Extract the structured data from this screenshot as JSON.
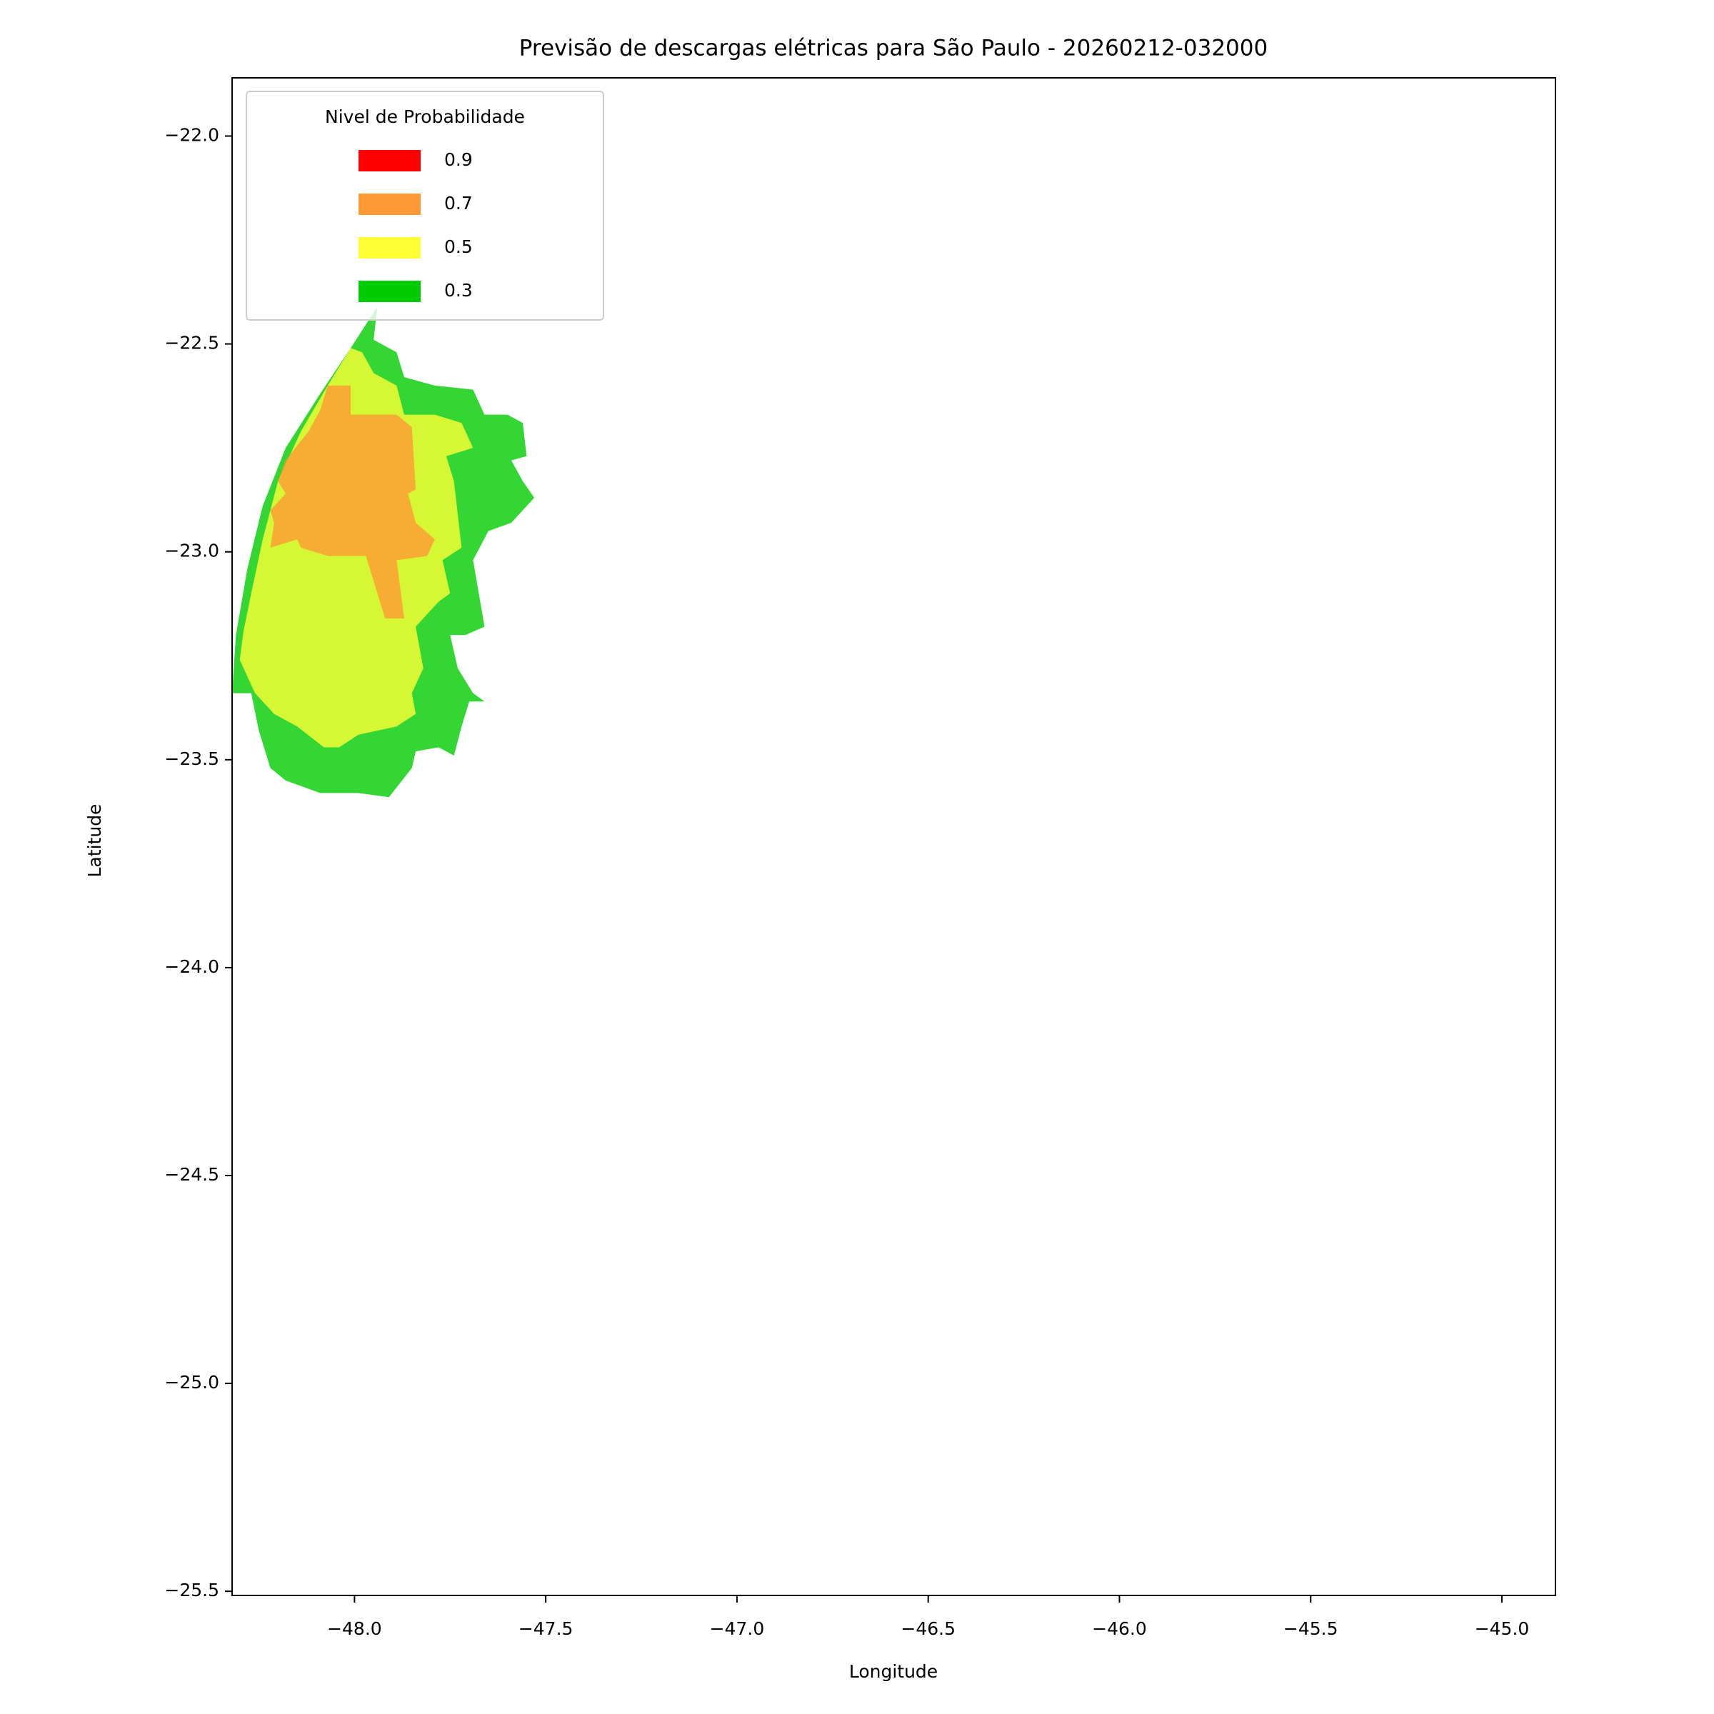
{
  "chart_data": {
    "type": "contourf",
    "title": "Previsão de descargas elétricas para São Paulo - 20260212-032000",
    "x_label": "Longitude",
    "y_label": "Latitude",
    "xlim": [
      -48.32,
      -44.86
    ],
    "ylim": [
      -25.51,
      -21.86
    ],
    "xticks": [
      {
        "value": -48.0,
        "label": "−48.0"
      },
      {
        "value": -47.5,
        "label": "−47.5"
      },
      {
        "value": -47.0,
        "label": "−47.0"
      },
      {
        "value": -46.5,
        "label": "−46.5"
      },
      {
        "value": -46.0,
        "label": "−46.0"
      },
      {
        "value": -45.5,
        "label": "−45.5"
      },
      {
        "value": -45.0,
        "label": "−45.0"
      }
    ],
    "yticks": [
      {
        "value": -22.0,
        "label": "−22.0"
      },
      {
        "value": -22.5,
        "label": "−22.5"
      },
      {
        "value": -23.0,
        "label": "−23.0"
      },
      {
        "value": -23.5,
        "label": "−23.5"
      },
      {
        "value": -24.0,
        "label": "−24.0"
      },
      {
        "value": -24.5,
        "label": "−24.5"
      },
      {
        "value": -25.0,
        "label": "−25.0"
      },
      {
        "value": -25.5,
        "label": "−25.5"
      }
    ],
    "alpha": 0.8,
    "legend": {
      "title": "Nivel de Probabilidade",
      "loc": "upper left"
    },
    "series": [
      {
        "name": "0.9",
        "color": "#ff0000",
        "polygons": []
      },
      {
        "name": "0.7",
        "color": "#ff9933",
        "polygons": [
          {
            "lon": [
              -48.07,
              -48.01,
              -48.01,
              -47.89,
              -47.85,
              -47.84,
              -47.86,
              -47.84,
              -47.79,
              -47.81,
              -47.89,
              -47.87,
              -47.92,
              -47.97,
              -48.07,
              -48.14,
              -48.15,
              -48.22,
              -48.21,
              -48.22,
              -48.18,
              -48.2,
              -48.18,
              -48.12,
              -48.09
            ],
            "lat": [
              -22.6,
              -22.6,
              -22.67,
              -22.67,
              -22.7,
              -22.85,
              -22.86,
              -22.93,
              -22.97,
              -23.01,
              -23.02,
              -23.16,
              -23.16,
              -23.01,
              -23.01,
              -22.99,
              -22.97,
              -22.99,
              -22.93,
              -22.9,
              -22.86,
              -22.83,
              -22.78,
              -22.71,
              -22.66
            ]
          }
        ]
      },
      {
        "name": "0.5",
        "color": "#ffff33",
        "polygons": [
          {
            "lon": [
              -48.01,
              -48.07,
              -48.14,
              -48.2,
              -48.24,
              -48.27,
              -48.29,
              -48.3,
              -48.26,
              -48.21,
              -48.15,
              -48.08,
              -48.04,
              -47.99,
              -47.94,
              -47.89,
              -47.84,
              -47.85,
              -47.82,
              -47.84,
              -47.78,
              -47.75,
              -47.77,
              -47.72,
              -47.74,
              -47.76,
              -47.69,
              -47.72,
              -47.79,
              -47.87,
              -47.89,
              -47.95,
              -47.98
            ],
            "lat": [
              -22.51,
              -22.6,
              -22.71,
              -22.83,
              -22.97,
              -23.1,
              -23.19,
              -23.26,
              -23.34,
              -23.39,
              -23.42,
              -23.47,
              -23.47,
              -23.44,
              -23.43,
              -23.42,
              -23.39,
              -23.34,
              -23.28,
              -23.18,
              -23.12,
              -23.1,
              -23.02,
              -22.99,
              -22.83,
              -22.77,
              -22.75,
              -22.69,
              -22.67,
              -22.67,
              -22.6,
              -22.57,
              -22.52
            ]
          }
        ]
      },
      {
        "name": "0.3",
        "color": "#00cc00",
        "polygons": [
          {
            "lon": [
              -47.94,
              -48.01,
              -48.09,
              -48.18,
              -48.24,
              -48.28,
              -48.31,
              -48.32,
              -48.27,
              -48.25,
              -48.22,
              -48.18,
              -48.09,
              -47.99,
              -47.91,
              -47.85,
              -47.84,
              -47.78,
              -47.74,
              -47.72,
              -47.7,
              -47.66,
              -47.69,
              -47.73,
              -47.75,
              -47.71,
              -47.66,
              -47.69,
              -47.65,
              -47.59,
              -47.53,
              -47.56,
              -47.59,
              -47.55,
              -47.56,
              -47.6,
              -47.66,
              -47.69,
              -47.79,
              -47.87,
              -47.89,
              -47.95
            ],
            "lat": [
              -22.41,
              -22.51,
              -22.62,
              -22.75,
              -22.89,
              -23.04,
              -23.2,
              -23.34,
              -23.34,
              -23.43,
              -23.52,
              -23.55,
              -23.58,
              -23.58,
              -23.59,
              -23.52,
              -23.48,
              -23.47,
              -23.49,
              -23.42,
              -23.36,
              -23.36,
              -23.34,
              -23.28,
              -23.2,
              -23.2,
              -23.18,
              -23.02,
              -22.95,
              -22.93,
              -22.87,
              -22.83,
              -22.78,
              -22.77,
              -22.69,
              -22.67,
              -22.67,
              -22.61,
              -22.6,
              -22.58,
              -22.52,
              -22.49
            ]
          }
        ]
      }
    ]
  }
}
